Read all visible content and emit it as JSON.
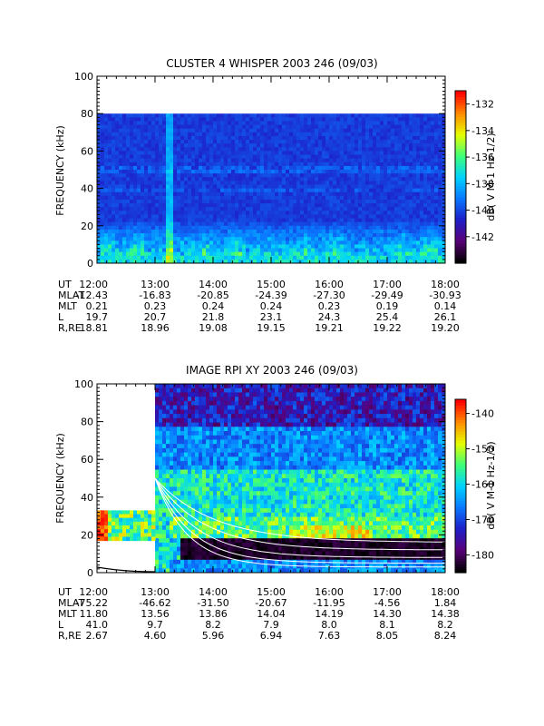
{
  "chart_data": [
    {
      "type": "heatmap",
      "title": "CLUSTER 4 WHISPER 2003 246 (09/03)",
      "ylabel": "FREQUENCY (kHz)",
      "ylim": [
        0,
        100
      ],
      "y_ticks": [
        "0",
        "20",
        "40",
        "60",
        "80",
        "100"
      ],
      "x_ticks": [
        "12:00",
        "13:00",
        "14:00",
        "15:00",
        "16:00",
        "17:00",
        "18:00"
      ],
      "data_fmax_khz": 80,
      "colorbar": {
        "label": "dB( V M-1 Hz-1/2)",
        "range": [
          -144,
          -131
        ],
        "ticks": [
          "-132",
          "-134",
          "-136",
          "-138",
          "-140",
          "-142"
        ],
        "colormap": [
          "#000000",
          "#5a0078",
          "#1e1ec8",
          "#0a78ff",
          "#00d2ff",
          "#3cff78",
          "#e6ff00",
          "#ff8c00",
          "#ff0000"
        ]
      },
      "ephemeris": {
        "labels": [
          "UT",
          "MLAT",
          "MLT",
          "L",
          "R,RE"
        ],
        "UT": [
          "12:00",
          "13:00",
          "14:00",
          "15:00",
          "16:00",
          "17:00",
          "18:00"
        ],
        "MLAT": [
          "-12.43",
          "-16.83",
          "-20.85",
          "-24.39",
          "-27.30",
          "-29.49",
          "-30.93"
        ],
        "MLT": [
          "0.21",
          "0.23",
          "0.24",
          "0.24",
          "0.23",
          "0.19",
          "0.14"
        ],
        "L": [
          "19.7",
          "20.7",
          "21.8",
          "23.1",
          "24.3",
          "25.4",
          "26.1"
        ],
        "R,RE": [
          "18.81",
          "18.96",
          "19.08",
          "19.15",
          "19.21",
          "19.22",
          "19.20"
        ]
      }
    },
    {
      "type": "heatmap",
      "title": "IMAGE RPI XY 2003 246 (09/03)",
      "ylabel": "FREQUENCY (kHz)",
      "ylim": [
        0,
        100
      ],
      "y_ticks": [
        "0",
        "20",
        "40",
        "60",
        "80",
        "100"
      ],
      "x_ticks": [
        "12:00",
        "13:00",
        "14:00",
        "15:00",
        "16:00",
        "17:00",
        "18:00"
      ],
      "data_start_ut": "13:00",
      "colorbar": {
        "label": "dB( V M-1 Hz-1/2)",
        "range": [
          -185,
          -136
        ],
        "ticks": [
          "-140",
          "-150",
          "-160",
          "-170",
          "-180"
        ],
        "colormap": [
          "#000000",
          "#5a0078",
          "#1e1ec8",
          "#0a78ff",
          "#00d2ff",
          "#3cff78",
          "#e6ff00",
          "#ff8c00",
          "#ff0000"
        ]
      },
      "ephemeris": {
        "labels": [
          "UT",
          "MLAT",
          "MLT",
          "L",
          "R,RE"
        ],
        "UT": [
          "12:00",
          "13:00",
          "14:00",
          "15:00",
          "16:00",
          "17:00",
          "18:00"
        ],
        "MLAT": [
          "-75.22",
          "-46.62",
          "-31.50",
          "-20.67",
          "-11.95",
          "-4.56",
          "1.84"
        ],
        "MLT": [
          "11.80",
          "13.56",
          "13.86",
          "14.04",
          "14.19",
          "14.30",
          "14.38"
        ],
        "L": [
          "41.0",
          "9.7",
          "8.2",
          "7.9",
          "8.0",
          "8.1",
          "8.2"
        ],
        "R,RE": [
          "2.67",
          "4.60",
          "5.96",
          "6.94",
          "7.63",
          "8.05",
          "8.24"
        ]
      }
    }
  ]
}
